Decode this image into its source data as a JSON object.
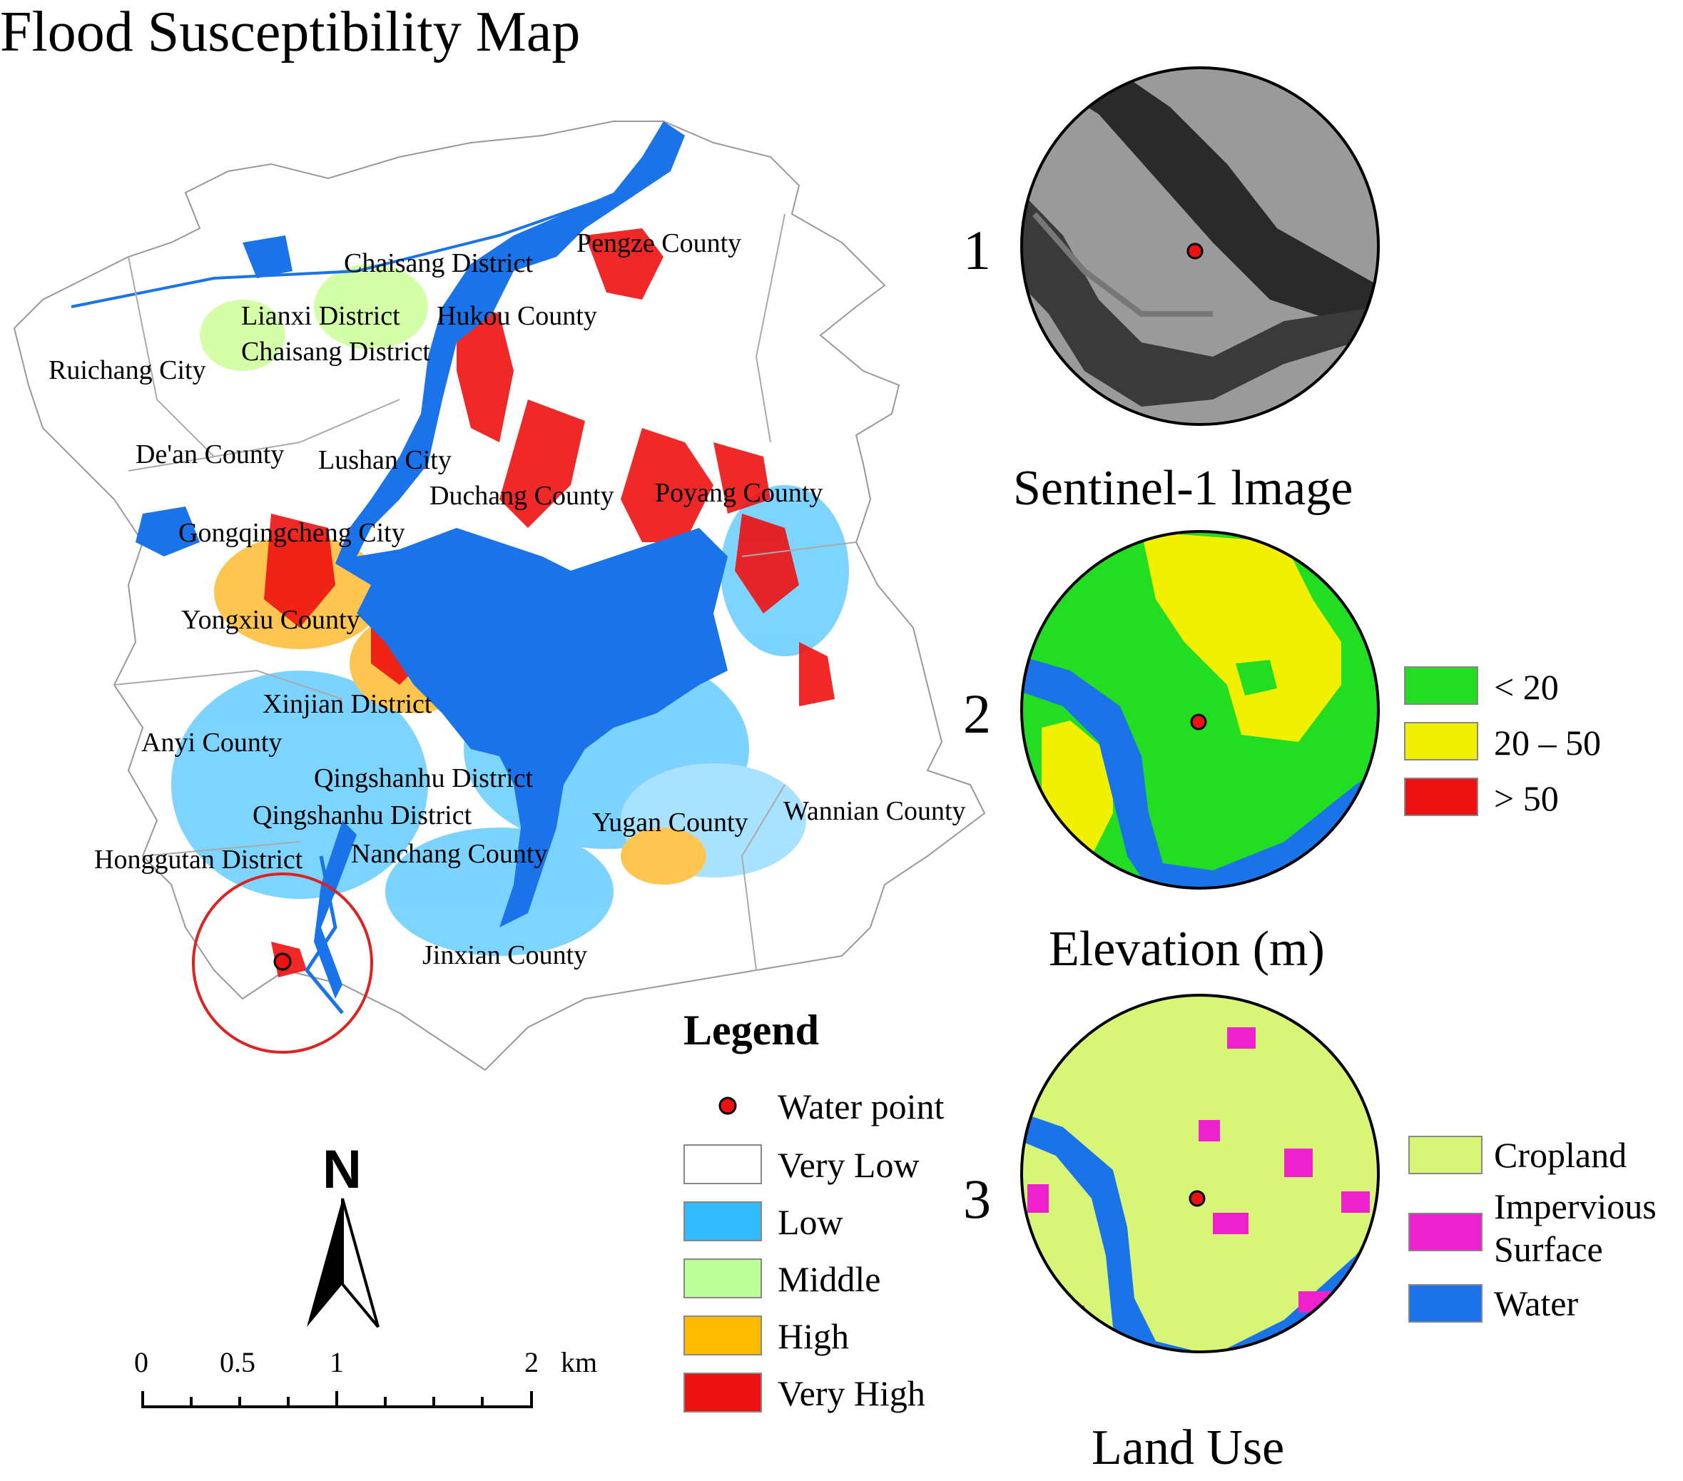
{
  "title": "Flood Susceptibility Map",
  "place_labels": [
    "Pengze County",
    "Chaisang District",
    "Lianxi District",
    "Hukou County",
    "Chaisang District",
    "Ruichang City",
    "De'an County",
    "Lushan City",
    "Duchang County",
    "Poyang County",
    "Gongqingcheng City",
    "Yongxiu County",
    "Xinjian District",
    "Anyi County",
    "Qingshanhu District",
    "Qingshanhu District",
    "Yugan County",
    "Wannian County",
    "Honggutan District",
    "Nanchang County",
    "Jinxian County"
  ],
  "panels": [
    {
      "number": "1",
      "caption": "Sentinel-1 lmage"
    },
    {
      "number": "2",
      "caption": "Elevation (m)"
    },
    {
      "number": "3",
      "caption": "Land Use"
    }
  ],
  "elevation_legend": [
    {
      "label": "< 20",
      "color": "#22dd22"
    },
    {
      "label": " 20 – 50",
      "color": "#f0f000"
    },
    {
      "label": "> 50",
      "color": "#ee1111"
    }
  ],
  "landuse_legend": [
    {
      "label": "Cropland",
      "color": "#d8f577"
    },
    {
      "label": "Impervious",
      "label2": "Surface",
      "color": "#ee22cc"
    },
    {
      "label": "Water",
      "color": "#1a73e8"
    }
  ],
  "legend": {
    "title": "Legend",
    "water_point": "Water point",
    "classes": [
      {
        "label": "Very Low",
        "color": "#ffffff"
      },
      {
        "label": "Low",
        "color": "#33bbff"
      },
      {
        "label": "Middle",
        "color": "#bbff99"
      },
      {
        "label": "High",
        "color": "#ffbb00"
      },
      {
        "label": "Very High",
        "color": "#ee1111"
      }
    ]
  },
  "north_arrow": "N",
  "scale_bar": {
    "ticks": [
      "0",
      "0.5",
      "1",
      "2"
    ],
    "unit": "km"
  },
  "colors": {
    "water": "#1a73e8",
    "water_point": "#ee1111",
    "highlight_circle": "#dd2222"
  }
}
